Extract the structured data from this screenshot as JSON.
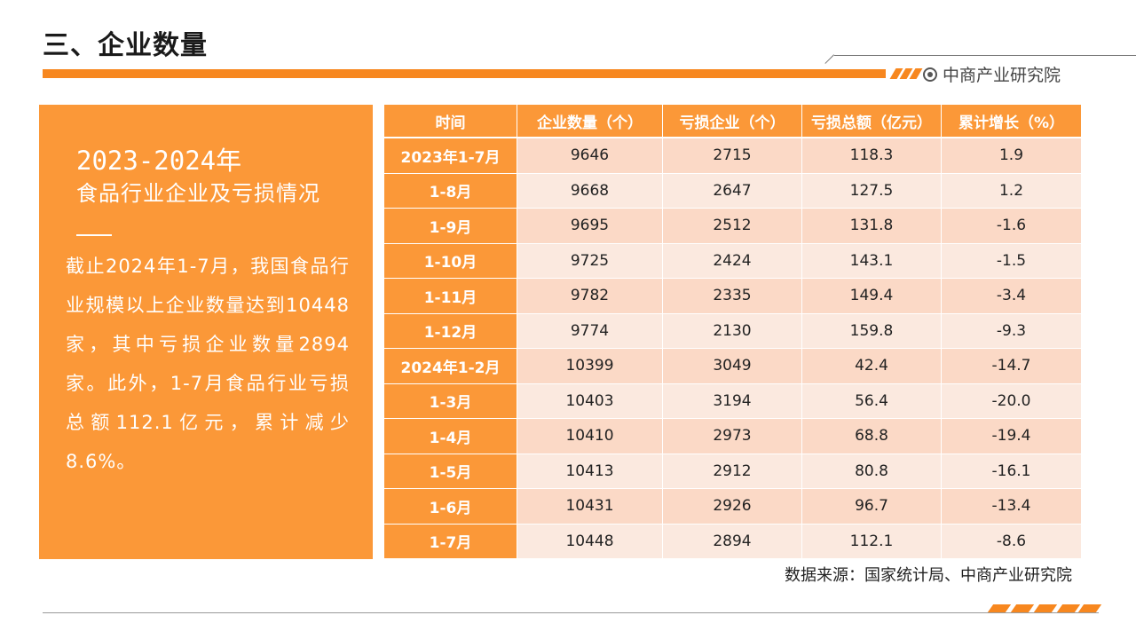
{
  "header": {
    "title": "三、企业数量",
    "brand": "中商产业研究院",
    "accent_color": "#f7871f"
  },
  "panel": {
    "year": "2023-2024年",
    "subtitle": "食品行业企业及亏损情况",
    "body": "截止2024年1-7月，我国食品行业规模以上企业数量达到10448家，其中亏损企业数量2894家。此外，1-7月食品行业亏损总额112.1亿元，累计减少8.6%。",
    "background_color": "#fb9838"
  },
  "table": {
    "headers": [
      "时间",
      "企业数量（个）",
      "亏损企业（个）",
      "亏损总额（亿元）",
      "累计增长（%）"
    ],
    "rows": [
      [
        "2023年1-7月",
        "9646",
        "2715",
        "118.3",
        "1.9"
      ],
      [
        "1-8月",
        "9668",
        "2647",
        "127.5",
        "1.2"
      ],
      [
        "1-9月",
        "9695",
        "2512",
        "131.8",
        "-1.6"
      ],
      [
        "1-10月",
        "9725",
        "2424",
        "143.1",
        "-1.5"
      ],
      [
        "1-11月",
        "9782",
        "2335",
        "149.4",
        "-3.4"
      ],
      [
        "1-12月",
        "9774",
        "2130",
        "159.8",
        "-9.3"
      ],
      [
        "2024年1-2月",
        "10399",
        "3049",
        "42.4",
        "-14.7"
      ],
      [
        "1-3月",
        "10403",
        "3194",
        "56.4",
        "-20.0"
      ],
      [
        "1-4月",
        "10410",
        "2973",
        "68.8",
        "-19.4"
      ],
      [
        "1-5月",
        "10413",
        "2912",
        "80.8",
        "-16.1"
      ],
      [
        "1-6月",
        "10431",
        "2926",
        "96.7",
        "-13.4"
      ],
      [
        "1-7月",
        "10448",
        "2894",
        "112.1",
        "-8.6"
      ]
    ]
  },
  "footer": {
    "source": "数据来源：国家统计局、中商产业研究院"
  }
}
